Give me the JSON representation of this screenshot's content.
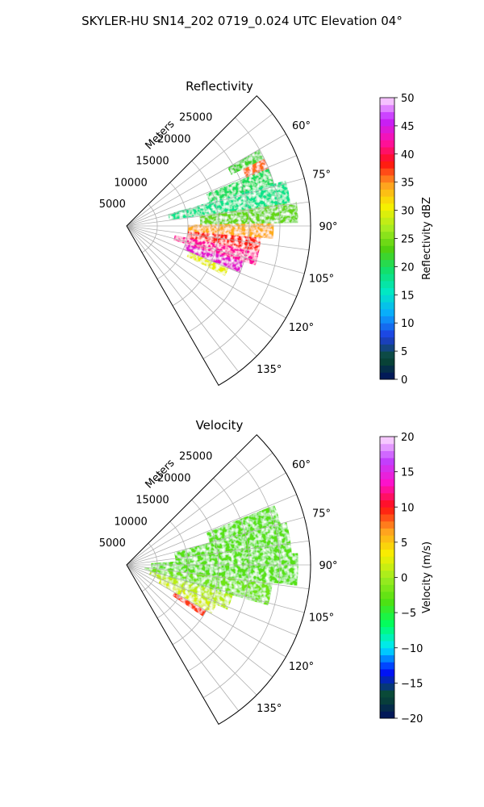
{
  "figure": {
    "suptitle": "SKYLER-HU  SN14_202  0719_0.024 UTC Elevation 04°"
  },
  "chart_data": [
    {
      "type": "heatmap",
      "projection": "polar-sector",
      "title": "Reflectivity",
      "radial_label": "Meters",
      "radial_ticks": [
        "5000",
        "10000",
        "15000",
        "20000",
        "25000"
      ],
      "radial_tick_values": [
        5000,
        10000,
        15000,
        20000,
        25000
      ],
      "rlim": [
        0,
        30000
      ],
      "azimuth_ticks": [
        "60°",
        "75°",
        "90°",
        "105°",
        "120°",
        "135°"
      ],
      "azimuth_tick_values": [
        60,
        75,
        90,
        105,
        120,
        135
      ],
      "theta_range": [
        45,
        150
      ],
      "grid": true,
      "colorbar": {
        "label": "Reflectivity dBZ",
        "ticks": [
          "0",
          "5",
          "10",
          "15",
          "20",
          "25",
          "30",
          "35",
          "40",
          "45",
          "50"
        ],
        "range": [
          0,
          50
        ],
        "colormap": "pyart_NWSRef",
        "stops": [
          "#001060",
          "#0a4d2e",
          "#1e3ce0",
          "#0aa8ff",
          "#00e8c8",
          "#10e070",
          "#50d010",
          "#a8ec20",
          "#f8f000",
          "#ffa020",
          "#ff1010",
          "#ff10a8",
          "#c020ff",
          "#ffe0ff"
        ]
      },
      "cells": [
        {
          "az": 62,
          "r": [
            19000,
            25000
          ],
          "dbz": 22
        },
        {
          "az": 66,
          "r": [
            21000,
            25000
          ],
          "dbz": 36
        },
        {
          "az": 70,
          "r": [
            14000,
            25000
          ],
          "dbz": 20
        },
        {
          "az": 78,
          "r": [
            7000,
            27000
          ],
          "dbz": 18
        },
        {
          "az": 86,
          "r": [
            12000,
            28000
          ],
          "dbz": 24
        },
        {
          "az": 92,
          "r": [
            10000,
            24000
          ],
          "dbz": 34
        },
        {
          "az": 98,
          "r": [
            10000,
            22000
          ],
          "dbz": 38
        },
        {
          "az": 104,
          "r": [
            8000,
            22000
          ],
          "dbz": 42
        },
        {
          "az": 110,
          "r": [
            10000,
            20000
          ],
          "dbz": 44
        },
        {
          "az": 115,
          "r": [
            11000,
            18000
          ],
          "dbz": 30
        }
      ]
    },
    {
      "type": "heatmap",
      "projection": "polar-sector",
      "title": "Velocity",
      "radial_label": "Meters",
      "radial_ticks": [
        "5000",
        "10000",
        "15000",
        "20000",
        "25000"
      ],
      "radial_tick_values": [
        5000,
        10000,
        15000,
        20000,
        25000
      ],
      "rlim": [
        0,
        30000
      ],
      "azimuth_ticks": [
        "60°",
        "75°",
        "90°",
        "105°",
        "120°",
        "135°"
      ],
      "azimuth_tick_values": [
        60,
        75,
        90,
        105,
        120,
        135
      ],
      "theta_range": [
        45,
        150
      ],
      "grid": true,
      "colorbar": {
        "label": "Velocity (m/s)",
        "ticks": [
          "−20",
          "−15",
          "−10",
          "−5",
          "0",
          "5",
          "10",
          "15",
          "20"
        ],
        "range": [
          -20,
          20
        ],
        "colormap": "pyart_NWSVel",
        "stops": [
          "#001060",
          "#0a4d2e",
          "#0010ff",
          "#00e8ff",
          "#00ff60",
          "#50e010",
          "#a0ec20",
          "#f8f000",
          "#ffa020",
          "#ff1010",
          "#ff10c8",
          "#c040ff",
          "#ffe0ff"
        ]
      },
      "cells": [
        {
          "az": 70,
          "r": [
            14000,
            26000
          ],
          "vel": -3
        },
        {
          "az": 80,
          "r": [
            8000,
            27000
          ],
          "vel": -3
        },
        {
          "az": 92,
          "r": [
            4000,
            28000
          ],
          "vel": -3
        },
        {
          "az": 102,
          "r": [
            3000,
            24000
          ],
          "vel": -2
        },
        {
          "az": 110,
          "r": [
            4000,
            18000
          ],
          "vel": 1
        },
        {
          "az": 118,
          "r": [
            6000,
            16000
          ],
          "vel": 2
        },
        {
          "az": 122,
          "r": [
            9000,
            15000
          ],
          "vel": 9
        }
      ]
    }
  ]
}
